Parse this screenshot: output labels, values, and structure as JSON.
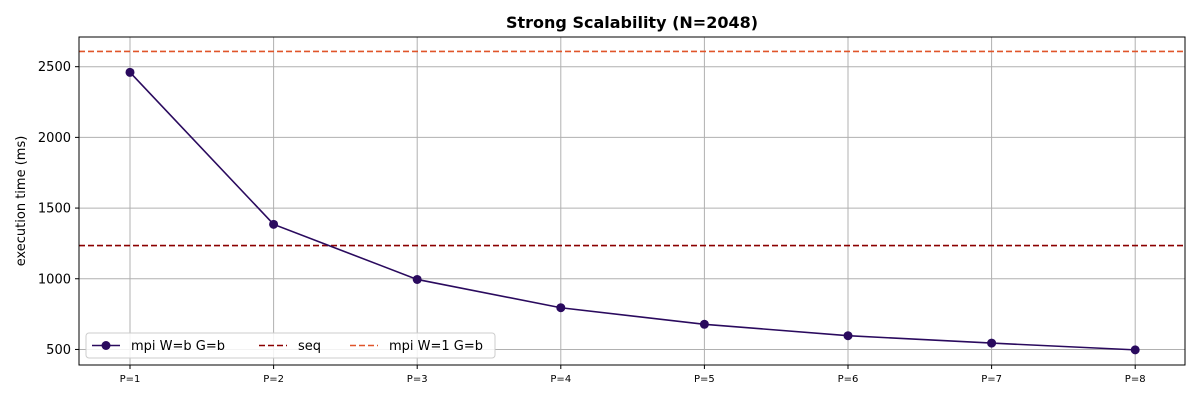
{
  "chart_data": {
    "type": "line",
    "title": "Strong Scalability (N=2048)",
    "ylabel": "execution time (ms)",
    "xlabel": "",
    "categories": [
      "P=1",
      "P=2",
      "P=3",
      "P=4",
      "P=5",
      "P=6",
      "P=7",
      "P=8"
    ],
    "ylim": [
      390,
      2710
    ],
    "yticks": [
      500,
      1000,
      1500,
      2000,
      2500
    ],
    "grid": true,
    "legend_position": "lower-left",
    "series": [
      {
        "name": "mpi W=b G=b",
        "style": "solid-marker",
        "color": "#2a0a5e",
        "values": [
          2460,
          1385,
          995,
          795,
          678,
          597,
          545,
          497
        ]
      }
    ],
    "reference_lines": [
      {
        "name": "seq",
        "style": "dashed",
        "color": "#8b0000",
        "value": 1235
      },
      {
        "name": "mpi W=1 G=b",
        "style": "dashed",
        "color": "#e0552a",
        "value": 2608
      }
    ],
    "grid_color": "#b0b0b0"
  }
}
